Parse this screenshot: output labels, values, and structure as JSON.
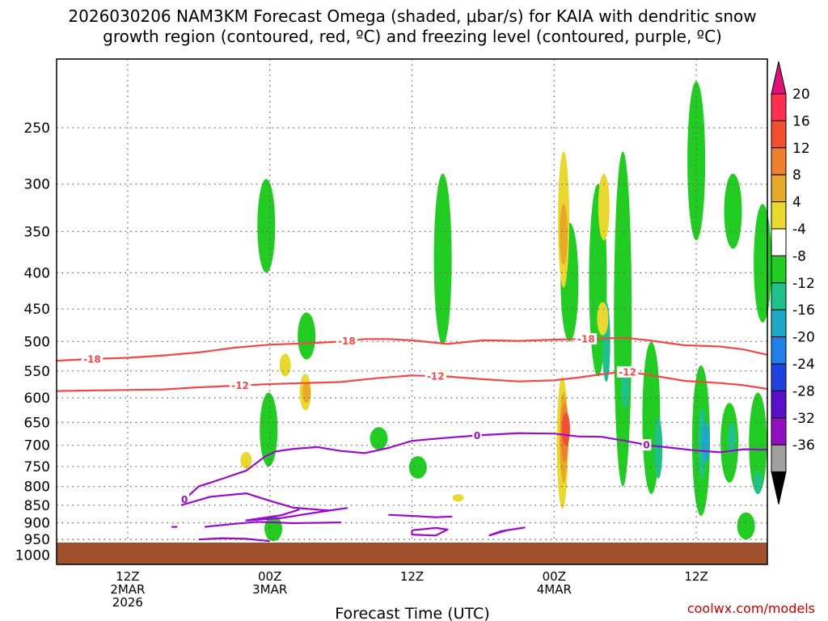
{
  "title_line1": "2026030206 NAM3KM Forecast Omega (shaded, μbar/s) for KAIA with dendritic snow",
  "title_line2": "growth region (contoured, red, ºC) and freezing level (contoured, purple, ºC)",
  "credit": "coolwx.com/models",
  "chart_data": {
    "type": "heatmap",
    "xlabel": "Forecast Time (UTC)",
    "x_ticks": [
      {
        "hour": 6,
        "lines": [
          "12Z",
          "2MAR",
          "2026"
        ]
      },
      {
        "hour": 18,
        "lines": [
          "00Z",
          "3MAR"
        ]
      },
      {
        "hour": 30,
        "lines": [
          "12Z"
        ]
      },
      {
        "hour": 42,
        "lines": [
          "00Z",
          "4MAR"
        ]
      },
      {
        "hour": 54,
        "lines": [
          "12Z"
        ]
      }
    ],
    "x_range_hours": [
      0,
      60
    ],
    "y_levels": [
      "250",
      "300",
      "350",
      "400",
      "450",
      "500",
      "550",
      "600",
      "650",
      "700",
      "750",
      "800",
      "850",
      "900",
      "950",
      "1000"
    ],
    "y_range_hPa": [
      200,
      1030
    ],
    "y_scale": "log-pressure",
    "colorbar": {
      "labels": [
        "20",
        "16",
        "12",
        "8",
        "4",
        "-4",
        "-8",
        "-12",
        "-16",
        "-20",
        "-24",
        "-28",
        "-32",
        "-36"
      ],
      "colors": [
        "#ff2f50",
        "#f05030",
        "#f08030",
        "#e8a828",
        "#e8d830",
        "#ffffff",
        "#22cc22",
        "#20c08a",
        "#20a8c8",
        "#2080e8",
        "#2040e0",
        "#5a10c8",
        "#9010c0",
        "#a0a0a0"
      ],
      "arrow_top_color": "#e0107a",
      "arrow_bottom_color": "#000000"
    },
    "omega_regions": [
      {
        "hour": 17.7,
        "p_top": 295,
        "p_bot": 400,
        "cat": "-8"
      },
      {
        "hour": 32.6,
        "p_top": 290,
        "p_bot": 505,
        "cat": "-8"
      },
      {
        "hour": 21.1,
        "p_top": 455,
        "p_bot": 530,
        "cat": "-8"
      },
      {
        "hour": 17.9,
        "p_top": 590,
        "p_bot": 750,
        "cat": "-8"
      },
      {
        "hour": 27.2,
        "p_top": 660,
        "p_bot": 710,
        "cat": "-8"
      },
      {
        "hour": 30.5,
        "p_top": 725,
        "p_bot": 780,
        "cat": "-8"
      },
      {
        "hour": 18.3,
        "p_top": 880,
        "p_bot": 955,
        "cat": "-8"
      },
      {
        "hour": 43.3,
        "p_top": 340,
        "p_bot": 500,
        "cat": "-8"
      },
      {
        "hour": 45.7,
        "p_top": 300,
        "p_bot": 560,
        "cat": "-8"
      },
      {
        "hour": 47.8,
        "p_top": 270,
        "p_bot": 800,
        "cat": "-8"
      },
      {
        "hour": 50.2,
        "p_top": 500,
        "p_bot": 820,
        "cat": "-8"
      },
      {
        "hour": 54.0,
        "p_top": 215,
        "p_bot": 360,
        "cat": "-8"
      },
      {
        "hour": 54.4,
        "p_top": 540,
        "p_bot": 880,
        "cat": "-8"
      },
      {
        "hour": 57.1,
        "p_top": 290,
        "p_bot": 370,
        "cat": "-8"
      },
      {
        "hour": 56.8,
        "p_top": 610,
        "p_bot": 790,
        "cat": "-8"
      },
      {
        "hour": 59.2,
        "p_top": 590,
        "p_bot": 820,
        "cat": "-8"
      },
      {
        "hour": 59.6,
        "p_top": 320,
        "p_bot": 470,
        "cat": "-8"
      },
      {
        "hour": 58.2,
        "p_top": 870,
        "p_bot": 950,
        "cat": "-8"
      },
      {
        "hour": 46.4,
        "p_top": 440,
        "p_bot": 570,
        "cat": "-12"
      },
      {
        "hour": 48.0,
        "p_top": 540,
        "p_bot": 620,
        "cat": "-12"
      },
      {
        "hour": 50.8,
        "p_top": 640,
        "p_bot": 780,
        "cat": "-12"
      },
      {
        "hour": 54.5,
        "p_top": 620,
        "p_bot": 780,
        "cat": "-12"
      },
      {
        "hour": 54.8,
        "p_top": 650,
        "p_bot": 740,
        "cat": "-16"
      },
      {
        "hour": 57.0,
        "p_top": 650,
        "p_bot": 720,
        "cat": "-12"
      },
      {
        "hour": 59.2,
        "p_top": 760,
        "p_bot": 820,
        "cat": "-12"
      },
      {
        "hour": 42.8,
        "p_top": 270,
        "p_bot": 420,
        "cat": "4"
      },
      {
        "hour": 42.8,
        "p_top": 320,
        "p_bot": 390,
        "cat": "8"
      },
      {
        "hour": 46.2,
        "p_top": 290,
        "p_bot": 360,
        "cat": "4"
      },
      {
        "hour": 46.1,
        "p_top": 440,
        "p_bot": 490,
        "cat": "4"
      },
      {
        "hour": 21.0,
        "p_top": 555,
        "p_bot": 625,
        "cat": "4"
      },
      {
        "hour": 21.1,
        "p_top": 570,
        "p_bot": 610,
        "cat": "8"
      },
      {
        "hour": 19.3,
        "p_top": 520,
        "p_bot": 560,
        "cat": "4"
      },
      {
        "hour": 16.0,
        "p_top": 715,
        "p_bot": 755,
        "cat": "4"
      },
      {
        "hour": 33.9,
        "p_top": 820,
        "p_bot": 840,
        "cat": "4"
      },
      {
        "hour": 42.7,
        "p_top": 560,
        "p_bot": 860,
        "cat": "4"
      },
      {
        "hour": 42.8,
        "p_top": 590,
        "p_bot": 790,
        "cat": "8"
      },
      {
        "hour": 42.9,
        "p_top": 610,
        "p_bot": 740,
        "cat": "12"
      },
      {
        "hour": 43.0,
        "p_top": 630,
        "p_bot": 700,
        "cat": "16"
      }
    ],
    "contours": [
      {
        "name": "-18",
        "color": "#f04848",
        "label_hours": [
          3.0,
          24.5,
          44.7
        ],
        "points": [
          [
            0,
            532
          ],
          [
            3,
            529
          ],
          [
            6,
            527
          ],
          [
            9,
            523
          ],
          [
            12,
            518
          ],
          [
            15,
            510
          ],
          [
            18,
            505
          ],
          [
            21,
            503
          ],
          [
            24,
            500
          ],
          [
            26,
            496
          ],
          [
            28,
            496
          ],
          [
            30,
            498
          ],
          [
            33,
            504
          ],
          [
            36,
            498
          ],
          [
            39,
            499
          ],
          [
            42,
            497
          ],
          [
            44,
            496
          ],
          [
            46,
            495
          ],
          [
            48,
            494
          ],
          [
            50,
            498
          ],
          [
            53,
            506
          ],
          [
            56,
            508
          ],
          [
            58,
            513
          ],
          [
            60,
            522
          ]
        ]
      },
      {
        "name": "-12",
        "color": "#f04848",
        "label_hours": [
          15.5,
          32.0,
          48.2
        ],
        "points": [
          [
            0,
            587
          ],
          [
            3,
            586
          ],
          [
            6,
            585
          ],
          [
            9,
            584
          ],
          [
            12,
            580
          ],
          [
            15,
            577
          ],
          [
            18,
            574
          ],
          [
            21,
            572
          ],
          [
            24,
            570
          ],
          [
            27,
            563
          ],
          [
            30,
            558
          ],
          [
            33,
            560
          ],
          [
            36,
            565
          ],
          [
            39,
            569
          ],
          [
            42,
            567
          ],
          [
            44,
            562
          ],
          [
            46,
            556
          ],
          [
            48,
            551
          ],
          [
            50,
            557
          ],
          [
            53,
            568
          ],
          [
            56,
            572
          ],
          [
            58,
            576
          ],
          [
            60,
            583
          ]
        ]
      },
      {
        "name": "0",
        "color": "#9a0aca",
        "label_hours": [
          10.8,
          35.5,
          49.8
        ],
        "points": [
          [
            10.5,
            843
          ],
          [
            12,
            800
          ],
          [
            14,
            780
          ],
          [
            16,
            760
          ],
          [
            17.6,
            726
          ],
          [
            18.5,
            714
          ],
          [
            20,
            708
          ],
          [
            22,
            704
          ],
          [
            24,
            713
          ],
          [
            26,
            718
          ],
          [
            28,
            706
          ],
          [
            30,
            690
          ],
          [
            33,
            683
          ],
          [
            36,
            677
          ],
          [
            39,
            673
          ],
          [
            42,
            674
          ],
          [
            44,
            680
          ],
          [
            46,
            681
          ],
          [
            48,
            690
          ],
          [
            50,
            700
          ],
          [
            52,
            706
          ],
          [
            54,
            712
          ],
          [
            56,
            716
          ],
          [
            58,
            709
          ],
          [
            60,
            710
          ]
        ]
      },
      {
        "name": "",
        "color": "#9a0aca",
        "label_hours": [],
        "points": [
          [
            10.5,
            850
          ],
          [
            13,
            827
          ],
          [
            16,
            818
          ],
          [
            18,
            838
          ],
          [
            20,
            857
          ],
          [
            23,
            865
          ],
          [
            24.5,
            858
          ],
          [
            22,
            870
          ],
          [
            19,
            886
          ],
          [
            16,
            893
          ],
          [
            19,
            878
          ],
          [
            20.5,
            862
          ]
        ]
      },
      {
        "name": "",
        "color": "#9a0aca",
        "label_hours": [],
        "points": [
          [
            12.5,
            912
          ],
          [
            15,
            903
          ],
          [
            17,
            897
          ],
          [
            20,
            901
          ],
          [
            24,
            899
          ]
        ]
      },
      {
        "name": "",
        "color": "#9a0aca",
        "label_hours": [],
        "points": [
          [
            12,
            950
          ],
          [
            14,
            946
          ],
          [
            16,
            948
          ],
          [
            18,
            955
          ]
        ]
      },
      {
        "name": "",
        "color": "#9a0aca",
        "label_hours": [],
        "points": [
          [
            13,
            985
          ],
          [
            16,
            970
          ],
          [
            18,
            966
          ],
          [
            20,
            971
          ]
        ]
      },
      {
        "name": "",
        "color": "#9a0aca",
        "label_hours": [],
        "points": [
          [
            28,
            877
          ],
          [
            30,
            880
          ],
          [
            32,
            884
          ],
          [
            33.4,
            882
          ]
        ]
      },
      {
        "name": "",
        "color": "#9a0aca",
        "label_hours": [],
        "points": [
          [
            30,
            922
          ],
          [
            32,
            915
          ],
          [
            33,
            920
          ],
          [
            32,
            938
          ],
          [
            30,
            935
          ],
          [
            30,
            922
          ]
        ]
      },
      {
        "name": "",
        "color": "#9a0aca",
        "label_hours": [],
        "points": [
          [
            36.5,
            938
          ],
          [
            38,
            922
          ],
          [
            39.5,
            914
          ],
          [
            37.5,
            925
          ],
          [
            36.5,
            938
          ]
        ]
      },
      {
        "name": "",
        "color": "#9a0aca",
        "label_hours": [],
        "points": [
          [
            9.7,
            912
          ],
          [
            10.2,
            912
          ]
        ]
      },
      {
        "name": "",
        "color": "#9a0aca",
        "label_hours": [],
        "points": [
          [
            18.6,
            976
          ],
          [
            18.9,
            976
          ]
        ]
      }
    ],
    "ground_color": "#a0522d"
  }
}
